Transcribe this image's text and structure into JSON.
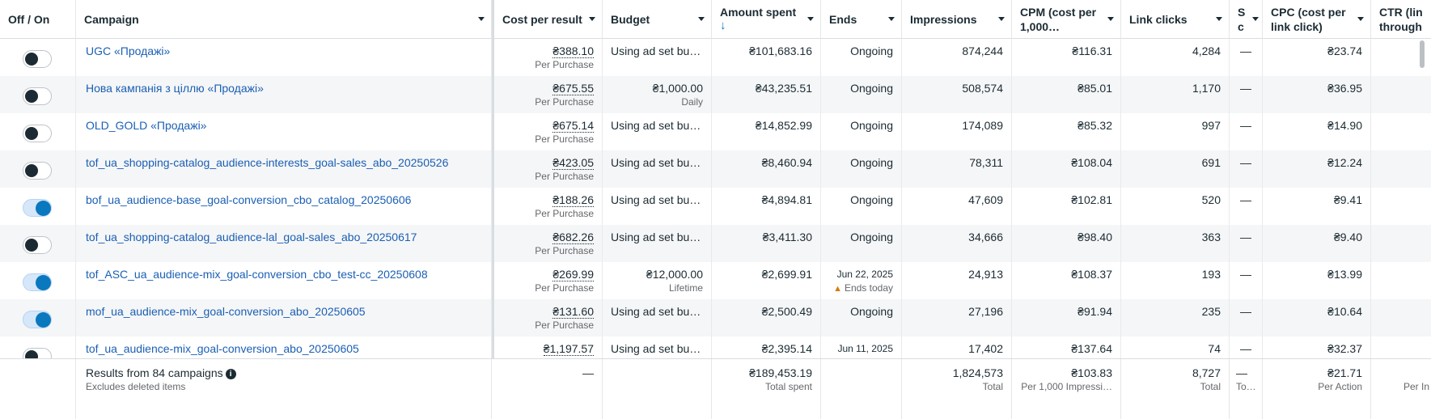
{
  "header": {
    "toggle": "Off / On",
    "campaign": "Campaign",
    "cost_per_result": "Cost per result",
    "budget": "Budget",
    "amount_spent": "Amount spent",
    "amount_spent_sort": "↓",
    "ends": "Ends",
    "impressions": "Impressions",
    "cpm_1": "CPM (cost per",
    "cpm_2": "1,000…",
    "link_clicks": "Link clicks",
    "narrow": "S",
    "narrow_2": "c",
    "cpc_1": "CPC (cost per",
    "cpc_2": "link click)",
    "ctr_1": "CTR (link",
    "ctr_2": "through r"
  },
  "rows": [
    {
      "state": "off",
      "campaign": "UGC «Продажі»",
      "cpr": "₴388.10",
      "cpr_sub": "Per Purchase",
      "budget": "Using ad set bu…",
      "budget_sub": "",
      "spent": "₴101,683.16",
      "ends": "Ongoing",
      "ends_sub": "",
      "impressions": "874,244",
      "cpm": "₴116.31",
      "link_clicks": "4,284",
      "narrow": "—",
      "cpc": "₴23.74"
    },
    {
      "state": "off",
      "campaign": "Нова кампанія з ціллю «Продажі»",
      "cpr": "₴675.55",
      "cpr_sub": "Per Purchase",
      "budget": "₴1,000.00",
      "budget_sub": "Daily",
      "spent": "₴43,235.51",
      "ends": "Ongoing",
      "ends_sub": "",
      "impressions": "508,574",
      "cpm": "₴85.01",
      "link_clicks": "1,170",
      "narrow": "—",
      "cpc": "₴36.95"
    },
    {
      "state": "off",
      "campaign": "OLD_GOLD «Продажі»",
      "cpr": "₴675.14",
      "cpr_sub": "Per Purchase",
      "budget": "Using ad set bu…",
      "budget_sub": "",
      "spent": "₴14,852.99",
      "ends": "Ongoing",
      "ends_sub": "",
      "impressions": "174,089",
      "cpm": "₴85.32",
      "link_clicks": "997",
      "narrow": "—",
      "cpc": "₴14.90"
    },
    {
      "state": "off",
      "campaign": "tof_ua_shopping-catalog_audience-interests_goal-sales_abo_20250526",
      "cpr": "₴423.05",
      "cpr_sub": "Per Purchase",
      "budget": "Using ad set bu…",
      "budget_sub": "",
      "spent": "₴8,460.94",
      "ends": "Ongoing",
      "ends_sub": "",
      "impressions": "78,311",
      "cpm": "₴108.04",
      "link_clicks": "691",
      "narrow": "—",
      "cpc": "₴12.24"
    },
    {
      "state": "on",
      "campaign": "bof_ua_audience-base_goal-conversion_cbo_catalog_20250606",
      "cpr": "₴188.26",
      "cpr_sub": "Per Purchase",
      "budget": "Using ad set bu…",
      "budget_sub": "",
      "spent": "₴4,894.81",
      "ends": "Ongoing",
      "ends_sub": "",
      "impressions": "47,609",
      "cpm": "₴102.81",
      "link_clicks": "520",
      "narrow": "—",
      "cpc": "₴9.41"
    },
    {
      "state": "off",
      "campaign": "tof_ua_shopping-catalog_audience-lal_goal-sales_abo_20250617",
      "cpr": "₴682.26",
      "cpr_sub": "Per Purchase",
      "budget": "Using ad set bu…",
      "budget_sub": "",
      "spent": "₴3,411.30",
      "ends": "Ongoing",
      "ends_sub": "",
      "impressions": "34,666",
      "cpm": "₴98.40",
      "link_clicks": "363",
      "narrow": "—",
      "cpc": "₴9.40"
    },
    {
      "state": "on",
      "campaign": "tof_ASC_ua_audience-mix_goal-conversion_cbo_test-cc_20250608",
      "cpr": "₴269.99",
      "cpr_sub": "Per Purchase",
      "budget": "₴12,000.00",
      "budget_sub": "Lifetime",
      "spent": "₴2,699.91",
      "ends": "Jun 22, 2025",
      "ends_sub": "Ends today",
      "impressions": "24,913",
      "cpm": "₴108.37",
      "link_clicks": "193",
      "narrow": "—",
      "cpc": "₴13.99"
    },
    {
      "state": "on",
      "campaign": "mof_ua_audience-mix_goal-conversion_abo_20250605",
      "cpr": "₴131.60",
      "cpr_sub": "Per Purchase",
      "budget": "Using ad set bu…",
      "budget_sub": "",
      "spent": "₴2,500.49",
      "ends": "Ongoing",
      "ends_sub": "",
      "impressions": "27,196",
      "cpm": "₴91.94",
      "link_clicks": "235",
      "narrow": "—",
      "cpc": "₴10.64"
    },
    {
      "state": "off",
      "campaign": "tof_ua_audience-mix_goal-conversion_abo_20250605",
      "cpr": "₴1,197.57",
      "cpr_sub": "",
      "budget": "Using ad set bu…",
      "budget_sub": "",
      "spent": "₴2,395.14",
      "ends": "Jun 11, 2025",
      "ends_sub": "",
      "impressions": "17,402",
      "cpm": "₴137.64",
      "link_clicks": "74",
      "narrow": "—",
      "cpc": "₴32.37"
    }
  ],
  "footer": {
    "results": "Results from 84 campaigns",
    "results_sub": "Excludes deleted items",
    "cpr": "—",
    "spent": "₴189,453.19",
    "spent_sub": "Total spent",
    "impressions": "1,824,573",
    "impressions_sub": "Total",
    "cpm": "₴103.83",
    "cpm_sub": "Per 1,000 Impressi…",
    "link_clicks": "8,727",
    "link_clicks_sub": "Total",
    "narrow": "—",
    "narrow_sub": "To…",
    "cpc": "₴21.71",
    "cpc_sub": "Per Action",
    "ctr_sub": "Per In"
  },
  "colors": {
    "accent": "#0a78be",
    "link": "#1a5fb4",
    "warning": "#d97b0a"
  },
  "icons": {
    "info": "info-icon",
    "warning": "warning-icon",
    "sort": "sort-down-arrow-icon"
  }
}
